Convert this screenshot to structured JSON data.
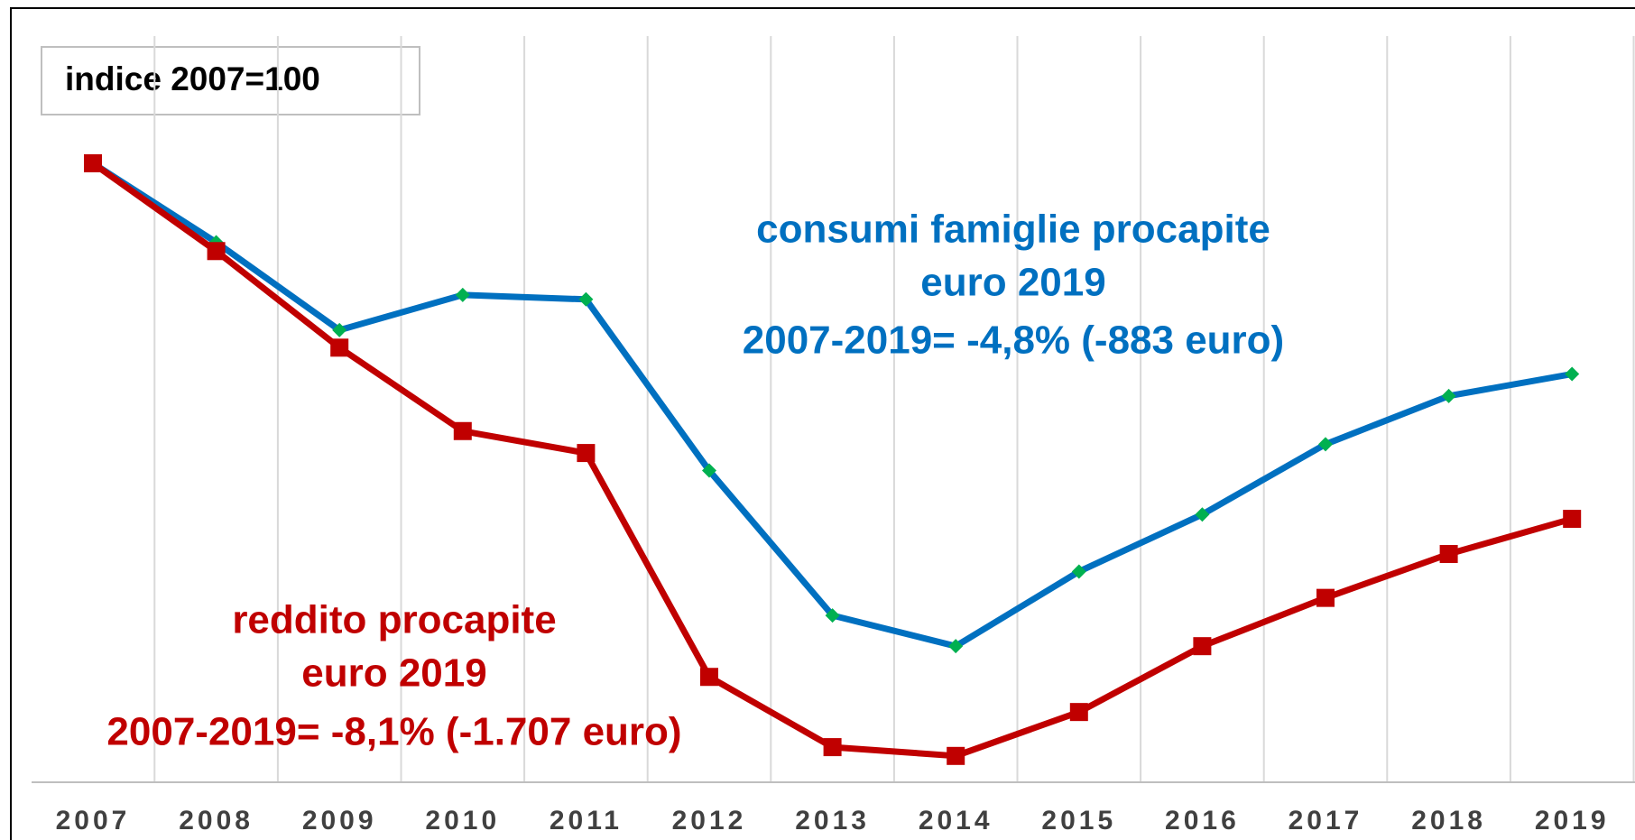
{
  "chart_data": {
    "type": "line",
    "note": "indice 2007=100",
    "categories": [
      "2007",
      "2008",
      "2009",
      "2010",
      "2011",
      "2012",
      "2013",
      "2014",
      "2015",
      "2016",
      "2017",
      "2018",
      "2019"
    ],
    "ylim": [
      85.9,
      103.0
    ],
    "grid": true,
    "series": [
      {
        "name": "consumi famiglie procapite",
        "annotation": [
          "euro 2019",
          "2007-2019= -4,8% (-883 euro)"
        ],
        "color": "#0070c0",
        "marker_color": "#00b050",
        "marker": "diamond",
        "values": [
          100,
          98.2,
          96.2,
          97.0,
          96.9,
          93.0,
          89.7,
          89.0,
          90.7,
          92.0,
          93.6,
          94.7,
          95.2
        ]
      },
      {
        "name": "reddito procapite",
        "annotation": [
          "euro 2019",
          "2007-2019= -8,1% (-1.707 euro)"
        ],
        "color": "#c00000",
        "marker_color": "#c00000",
        "marker": "square",
        "values": [
          100,
          98.0,
          95.8,
          93.9,
          93.4,
          88.3,
          86.7,
          86.5,
          87.5,
          89.0,
          90.1,
          91.1,
          91.9
        ]
      }
    ]
  }
}
